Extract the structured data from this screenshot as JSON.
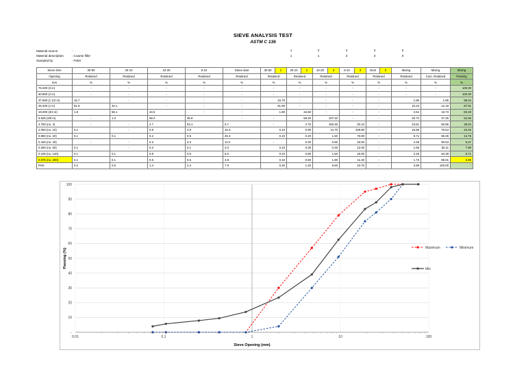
{
  "title": "SIEVE ANALYSIS TEST",
  "subtitle": "ASTM C 136",
  "meta": [
    {
      "key": "Material source",
      "value": ":"
    },
    {
      "key": "Material description",
      "value": ": Coarse filler"
    },
    {
      "key": "Sampled by",
      "value": ": Febri"
    }
  ],
  "mix_row1": [
    "1",
    "2",
    "4",
    "4",
    "0"
  ],
  "mix_row2": [
    "1",
    "1",
    "3",
    "3",
    "0"
  ],
  "header1": [
    "Sieve Size",
    "30-50",
    "20-10",
    "10-20",
    "5-10",
    "Stone dust",
    "30-50",
    "1",
    "20-10",
    "1",
    "10-20",
    "3",
    "5-10",
    "3",
    "Dust",
    "0",
    "Mixing",
    "Mixing",
    "Mixing"
  ],
  "header2": [
    "Opening",
    "Retained",
    "Retained",
    "Retained",
    "Retained",
    "Retained",
    "Retained",
    "Retained",
    "Retained",
    "Retained",
    "Retained",
    "Retained",
    "Cum. Retained",
    "Passing"
  ],
  "header3": [
    "mm",
    "%",
    "%",
    "%",
    "%",
    "%",
    "%",
    "%",
    "%",
    "%",
    "%",
    "%",
    "%",
    "%"
  ],
  "rows": [
    [
      "76.200 (3 in)",
      "-",
      "-",
      "-",
      "-",
      "-",
      "-",
      "-",
      "-",
      "-",
      "-",
      "-",
      "-",
      "100.00"
    ],
    [
      "50.800 (2 in)",
      "-",
      "-",
      "-",
      "-",
      "-",
      "-",
      "-",
      "-",
      "-",
      "-",
      "-",
      "-",
      "100.00"
    ],
    [
      "37.500 (1 1/2 in)",
      "15.7",
      "-",
      "-",
      "-",
      "-",
      "15.70",
      "-",
      "-",
      "-",
      "-",
      "1.96",
      "1.96",
      "98.04"
    ],
    [
      "25.400 (1 in)",
      "81.8",
      "40.1",
      "-",
      "-",
      "-",
      "81.80",
      "-",
      "-",
      "-",
      "-",
      "10.23",
      "12.19",
      "87.81"
    ],
    [
      "19.000 (3/4 in)",
      "1.8",
      "58.1",
      "34.5",
      "-",
      "-",
      "1.80",
      "34.50",
      "-",
      "-",
      "-",
      "4.54",
      "16.73",
      "83.28"
    ],
    [
      "9.525 (3/8 in)",
      "-",
      "1.0",
      "58.4",
      "35.8",
      "-",
      "-",
      "58.40",
      "107.40",
      "-",
      "-",
      "20.73",
      "37.45",
      "62.55"
    ],
    [
      "4.750 (no. 4)",
      "-",
      "-",
      "2.7",
      "53.1",
      "6.7",
      "-",
      "2.70",
      "165.30",
      "20.10",
      "-",
      "23.51",
      "60.96",
      "39.04"
    ],
    [
      "2.000 (no. 10)",
      "0.1",
      "-",
      "0.9",
      "4.9",
      "16.3",
      "0.10",
      "0.90",
      "14.70",
      "108.90",
      "-",
      "15.58",
      "76.54",
      "23.46"
    ],
    [
      "0.850 (no. 20)",
      "0.1",
      "0.1",
      "0.2",
      "0.5",
      "25.3",
      "0.10",
      "0.20",
      "1.50",
      "75.90",
      "-",
      "9.71",
      "86.25",
      "13.75"
    ],
    [
      "0.425 (no. 40)",
      "-",
      "-",
      "0.3",
      "0.3",
      "11.0",
      "-",
      "0.30",
      "0.90",
      "33.00",
      "-",
      "4.28",
      "90.53",
      "9.47"
    ],
    [
      "0.250 (no. 60)",
      "0.1",
      "-",
      "0.3",
      "0.1",
      "4.0",
      "0.10",
      "0.30",
      "0.30",
      "12.00",
      "-",
      "1.59",
      "92.11",
      "7.89"
    ],
    [
      "0.106 (no. 140)",
      "0.1",
      "0.1",
      "0.8",
      "0.5",
      "5.0",
      "0.10",
      "0.80",
      "1.50",
      "15.00",
      "-",
      "2.18",
      "94.29",
      "5.71"
    ],
    [
      "0.075 (no. 200)",
      "0.1",
      "0.1",
      "0.5",
      "0.6",
      "3.8",
      "0.10",
      "0.50",
      "1.80",
      "11.40",
      "-",
      "1.73",
      "96.01",
      "3.99"
    ],
    [
      "PAN",
      "0.2",
      "0.5",
      "1.4",
      "2.2",
      "7.9",
      "0.20",
      "1.40",
      "6.60",
      "23.70",
      "-",
      "3.99",
      "100.00",
      "-"
    ]
  ],
  "colors": {
    "highlight_yellow": "#ffff00",
    "passing_green": "#c6e0b4",
    "maximum": "#ff0000",
    "minimum": "#1f4e9c",
    "mix": "#404040"
  },
  "chart_data": {
    "type": "line",
    "xscale": "log",
    "xlabel": "Sieve Opening (mm)",
    "ylabel": "Passing (%)",
    "xlim": [
      0.01,
      100
    ],
    "ylim": [
      0,
      100
    ],
    "x_ticks": [
      "0.01",
      "0.1",
      "1",
      "10",
      "100"
    ],
    "y_ticks": [
      "-",
      "10",
      "20",
      "30",
      "40",
      "50",
      "60",
      "70",
      "80",
      "90",
      "100"
    ],
    "vertical_marker_x": 1,
    "series": [
      {
        "name": "Maximum",
        "style": "dashed",
        "color": "#ff0000",
        "x": [
          0.075,
          0.106,
          0.25,
          0.425,
          0.85,
          2.0,
          4.75,
          9.525,
          19.0,
          25.4,
          37.5,
          50.8,
          76.2
        ],
        "y": [
          0,
          0,
          0,
          0,
          0,
          30,
          57,
          79,
          95,
          97,
          100,
          100,
          100
        ]
      },
      {
        "name": "Minimum",
        "style": "dashed",
        "color": "#1f4e9c",
        "x": [
          0.075,
          0.106,
          0.25,
          0.425,
          0.85,
          2.0,
          4.75,
          9.525,
          19.0,
          25.4,
          37.5,
          50.8,
          76.2
        ],
        "y": [
          0,
          0,
          0,
          0,
          0,
          4,
          30,
          51,
          75,
          81,
          90,
          100,
          100
        ]
      },
      {
        "name": "Mix",
        "style": "solid",
        "color": "#404040",
        "x": [
          0.075,
          0.106,
          0.25,
          0.425,
          0.85,
          2.0,
          4.75,
          9.525,
          19.0,
          25.4,
          37.5,
          50.8,
          76.2
        ],
        "y": [
          3.99,
          5.71,
          7.89,
          9.47,
          13.75,
          23.46,
          39.04,
          62.55,
          83.28,
          87.81,
          98.04,
          100,
          100
        ]
      }
    ],
    "legend": [
      "Maximum",
      "Minimum",
      "Mix"
    ]
  }
}
